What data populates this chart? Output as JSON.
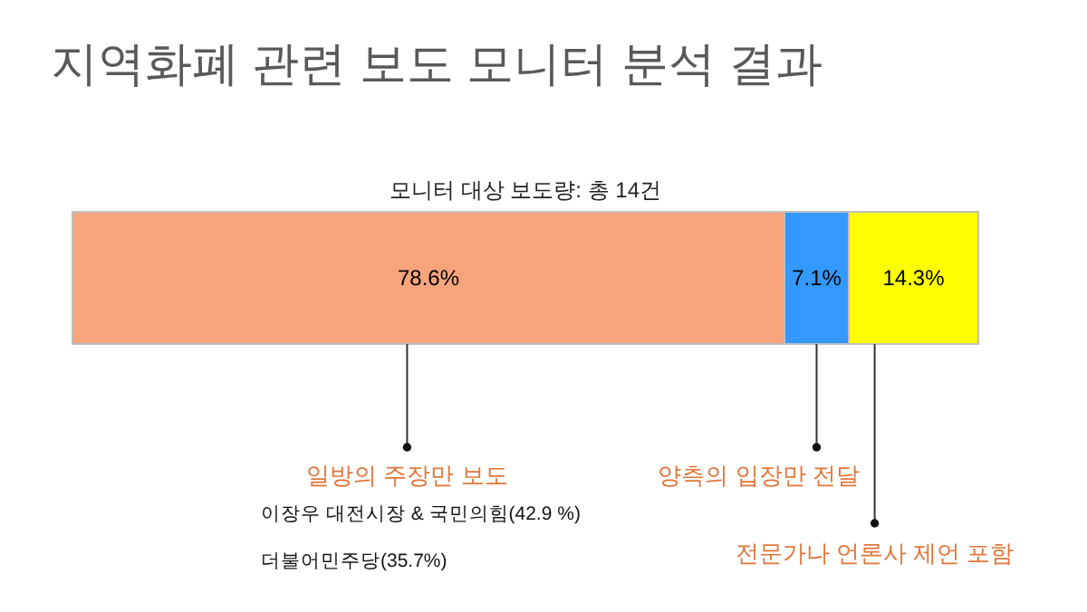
{
  "chart_data": {
    "type": "bar",
    "orientation": "horizontal",
    "stacked": true,
    "title": "지역화폐 관련 보도 모니터 분석 결과",
    "subtitle": "모니터 대상 보도량: 총 14건",
    "categories": [
      null
    ],
    "series": [
      {
        "name": "일방의 주장만 보도",
        "color": "#f7a47c",
        "values": [
          78.6
        ],
        "value_labels": [
          "78.6%"
        ]
      },
      {
        "name": "양측의 입장만 전달",
        "color": "#3399ff",
        "values": [
          7.1
        ],
        "value_labels": [
          "7.1%"
        ]
      },
      {
        "name": "전문가나 언론사 제언 포함",
        "color": "#ffff00",
        "values": [
          14.3
        ],
        "value_labels": [
          "14.3%"
        ]
      }
    ],
    "annotations": [
      "이장우 대전시장 & 국민의힘(42.9 %)",
      "더불어민주당(35.7%)"
    ]
  }
}
